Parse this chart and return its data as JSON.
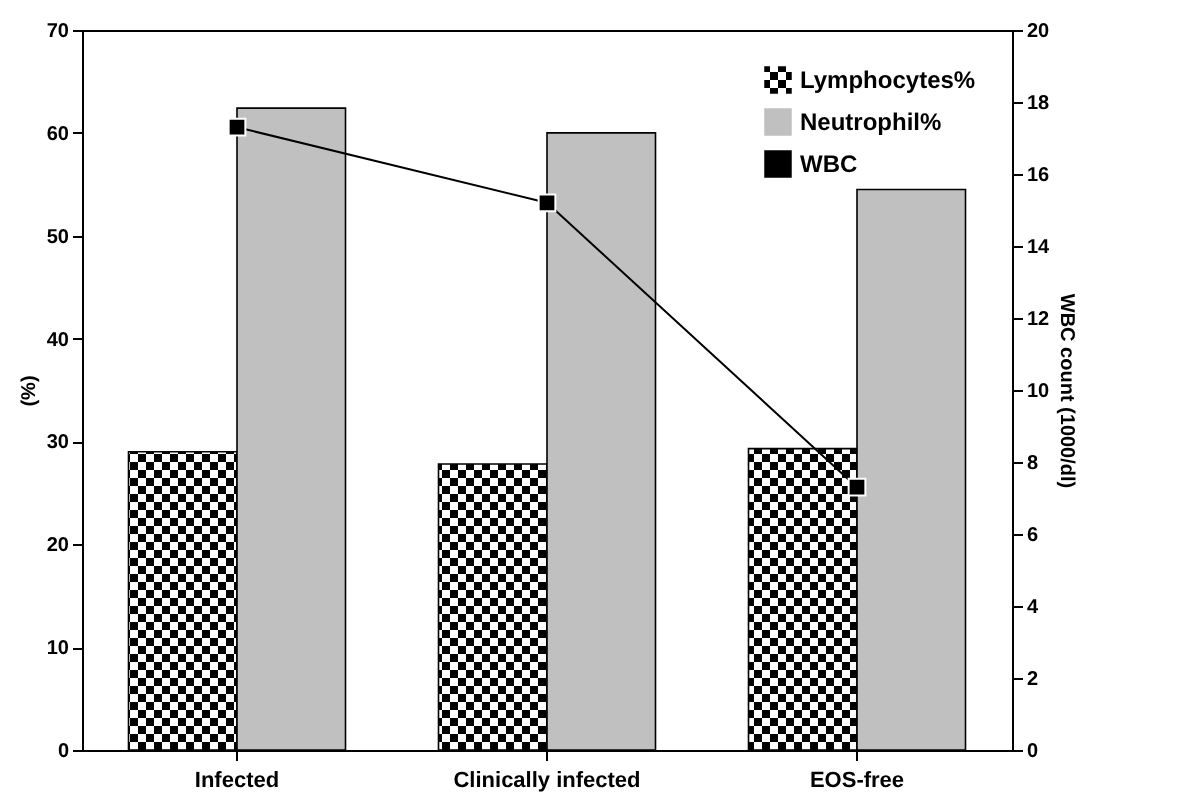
{
  "chart_data": {
    "type": "bar",
    "categories": [
      "Infected",
      "Clinically infected",
      "EOS-free"
    ],
    "ylabel": "(%)",
    "y2label": "WBC count (1000/dl)",
    "ylim": [
      0,
      70
    ],
    "yticks": [
      0,
      10,
      20,
      30,
      40,
      50,
      60,
      70
    ],
    "y2lim": [
      0,
      20
    ],
    "y2ticks": [
      0,
      2,
      4,
      6,
      8,
      10,
      12,
      14,
      16,
      18,
      20
    ],
    "series": [
      {
        "name": "Lymphocytes%",
        "color": "#000000",
        "values": [
          29,
          27.8,
          29.3
        ]
      },
      {
        "name": "Neutrophil%",
        "color": "#c0c0c0",
        "values": [
          62.4,
          60,
          54.5
        ]
      },
      {
        "name": "WBC",
        "type": "line",
        "axis": "y2",
        "color": "#000000",
        "values": [
          17.3,
          15.2,
          7.3
        ]
      }
    ],
    "legend": "top right",
    "grid": false,
    "marker": "square",
    "line_style": "solid"
  }
}
